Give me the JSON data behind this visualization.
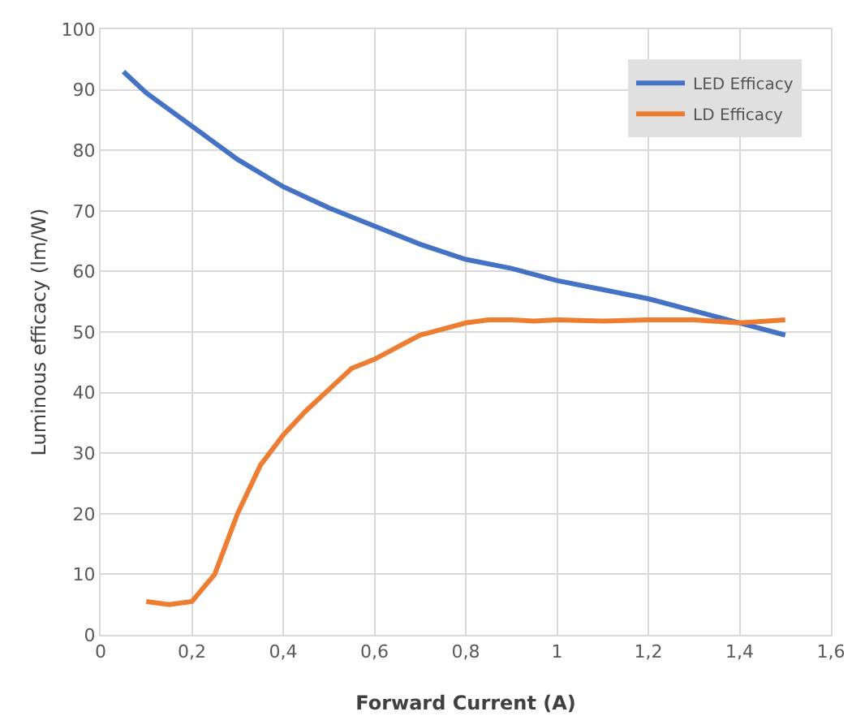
{
  "chart_data": {
    "type": "line",
    "xlabel": "Forward Current (A)",
    "ylabel": "Luminous efficacy (lm/W)",
    "xlim": [
      0,
      1.6
    ],
    "xticks": [
      0,
      {
        "value": 0.2,
        "label": "0,2"
      },
      {
        "value": 0.4,
        "label": "0,4"
      },
      {
        "value": 0.6,
        "label": "0,6"
      },
      {
        "value": 0.8,
        "label": "0,8"
      },
      1,
      {
        "value": 1.2,
        "label": "1,2"
      },
      {
        "value": 1.4,
        "label": "1,4"
      },
      {
        "value": 1.6,
        "label": "1,6"
      }
    ],
    "ylim": [
      0,
      100
    ],
    "yticks": [
      0,
      10,
      20,
      30,
      40,
      50,
      60,
      70,
      80,
      90,
      100
    ],
    "grid": true,
    "legend": "top right",
    "marker": "none",
    "line_style": "solid",
    "series": [
      {
        "name": "LED Efficacy",
        "color": "#4472c4",
        "x": [
          0.05,
          0.1,
          0.2,
          0.3,
          0.4,
          0.5,
          0.6,
          0.7,
          0.8,
          0.9,
          1.0,
          1.1,
          1.2,
          1.3,
          1.4,
          1.5
        ],
        "values": [
          93,
          89.5,
          84,
          78.5,
          74,
          70.5,
          67.5,
          64.5,
          62,
          60.5,
          58.5,
          57,
          55.5,
          53.5,
          51.5,
          49.5
        ]
      },
      {
        "name": "LD Efficacy",
        "color": "#ed7d31",
        "x": [
          0.1,
          0.15,
          0.2,
          0.25,
          0.3,
          0.35,
          0.4,
          0.45,
          0.5,
          0.55,
          0.6,
          0.65,
          0.7,
          0.75,
          0.8,
          0.85,
          0.9,
          0.95,
          1.0,
          1.1,
          1.2,
          1.3,
          1.4,
          1.5
        ],
        "values": [
          5.5,
          5,
          5.5,
          10,
          20,
          28,
          33,
          37,
          40.5,
          44,
          45.5,
          47.5,
          49.5,
          50.5,
          51.5,
          52,
          52,
          51.8,
          52,
          51.8,
          52,
          52,
          51.5,
          52
        ]
      }
    ]
  }
}
